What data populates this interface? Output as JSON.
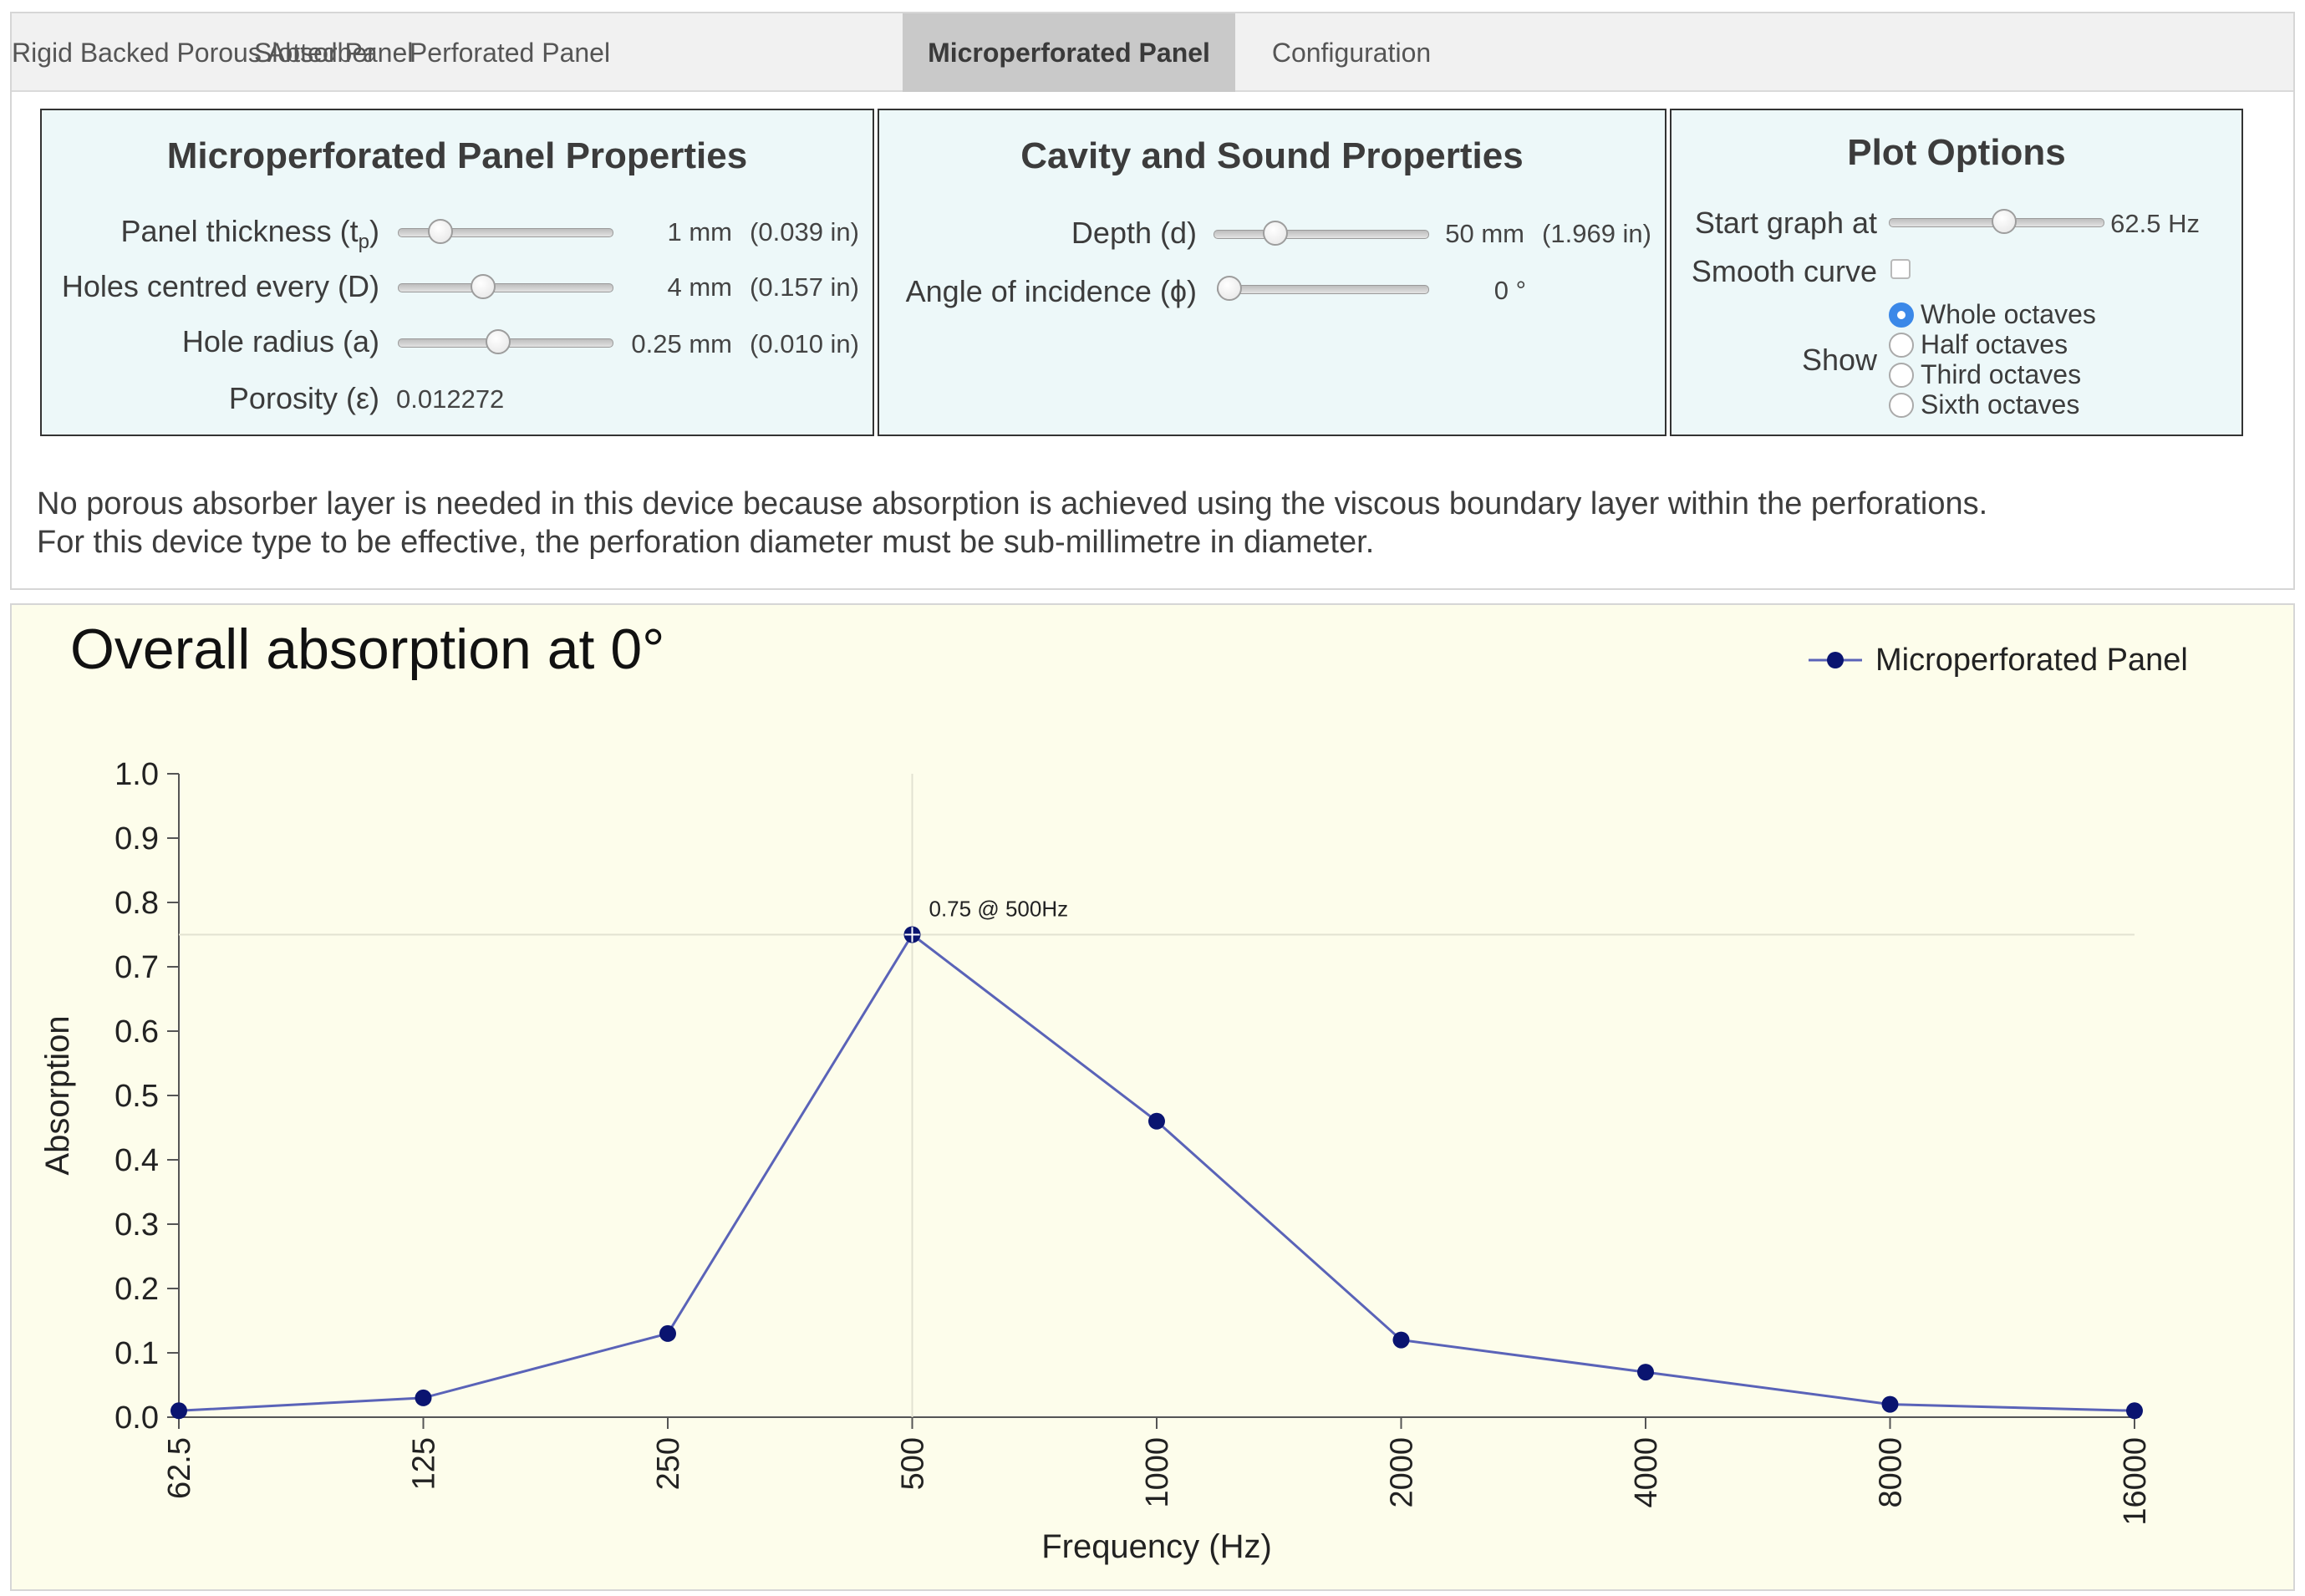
{
  "tabs": [
    {
      "label": "Rigid Backed Porous Absorber",
      "active": false
    },
    {
      "label": "Slotted Panel",
      "active": false
    },
    {
      "label": "Perforated Panel",
      "active": false
    },
    {
      "label": "Microperforated Panel",
      "active": true
    },
    {
      "label": "Configuration",
      "active": false
    }
  ],
  "panel_props": {
    "title": "Microperforated Panel Properties",
    "thickness": {
      "label_main": "Panel thickness (t",
      "label_sub": "p",
      "label_end": ")",
      "value": "1 mm",
      "imperial": "(0.039 in)",
      "slider_fraction": 0.16
    },
    "holes": {
      "label": "Holes centred every (D)",
      "value": "4 mm",
      "imperial": "(0.157 in)",
      "slider_fraction": 0.38
    },
    "radius": {
      "label": "Hole radius (a)",
      "value": "0.25 mm",
      "imperial": "(0.010 in)",
      "slider_fraction": 0.46
    },
    "porosity": {
      "label": "Porosity (ε)",
      "value": "0.012272"
    }
  },
  "cavity": {
    "title": "Cavity and Sound Properties",
    "depth": {
      "label": "Depth (d)",
      "value": "50 mm",
      "imperial": "(1.969 in)",
      "slider_fraction": 0.26
    },
    "angle": {
      "label": "Angle of incidence (ϕ)",
      "value": "0 °",
      "slider_fraction": 0.0
    }
  },
  "plot_options": {
    "title": "Plot Options",
    "start_label": "Start graph at",
    "start_value": "62.5 Hz",
    "start_slider_fraction": 0.54,
    "smooth_label": "Smooth curve",
    "smooth_checked": false,
    "show_label": "Show",
    "options": [
      {
        "label": "Whole octaves",
        "checked": true
      },
      {
        "label": "Half octaves",
        "checked": false
      },
      {
        "label": "Third octaves",
        "checked": false
      },
      {
        "label": "Sixth octaves",
        "checked": false
      }
    ]
  },
  "description": {
    "line1": "No porous absorber layer is needed in this device because absorption is achieved using the viscous boundary layer within the perforations.",
    "line2": "For this device type to be effective, the perforation diameter must be sub-millimetre in diameter."
  },
  "colors": {
    "series": "#5a63b8",
    "marker": "#0a1470",
    "panel_bg": "#edf8f9",
    "chart_bg": "#fdfdeb",
    "radio_checked": "#3b88e8"
  },
  "chart_data": {
    "type": "line",
    "title": "Overall absorption at 0°",
    "xlabel": "Frequency (Hz)",
    "ylabel": "Absorption",
    "x_scale": "log2",
    "categories": [
      "62.5",
      "125",
      "250",
      "500",
      "1000",
      "2000",
      "4000",
      "8000",
      "16000"
    ],
    "y_ticks": [
      "0.0",
      "0.1",
      "0.2",
      "0.3",
      "0.4",
      "0.5",
      "0.6",
      "0.7",
      "0.8",
      "0.9",
      "1.0"
    ],
    "ylim": [
      0,
      1
    ],
    "series": [
      {
        "name": "Microperforated Panel",
        "values": [
          0.01,
          0.03,
          0.13,
          0.75,
          0.46,
          0.12,
          0.07,
          0.02,
          0.01
        ]
      }
    ],
    "annotation": {
      "text": "0.75 @ 500Hz",
      "x": "500",
      "y": 0.75
    },
    "legend_position": "top-right"
  }
}
